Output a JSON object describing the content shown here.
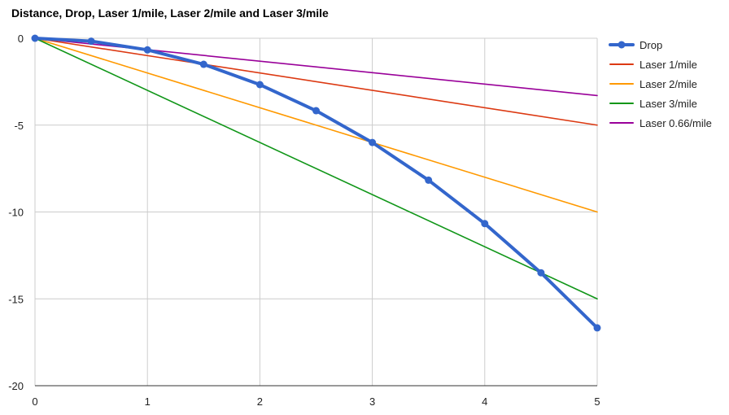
{
  "chart_data": {
    "type": "line",
    "title": "Distance, Drop, Laser 1/mile, Laser 2/mile and Laser 3/mile",
    "xlabel": "",
    "ylabel": "",
    "xlim": [
      0,
      5
    ],
    "ylim": [
      -20,
      0
    ],
    "x_ticks": [
      "0",
      "1",
      "2",
      "3",
      "4",
      "5"
    ],
    "y_ticks": [
      "0",
      "-5",
      "-10",
      "-15",
      "-20"
    ],
    "grid": true,
    "legend_position": "right",
    "series": [
      {
        "name": "Drop",
        "color": "#3366cc",
        "markers": true,
        "x": [
          0,
          0.5,
          1,
          1.5,
          2,
          2.5,
          3,
          3.5,
          4,
          4.5,
          5
        ],
        "y": [
          0,
          -0.17,
          -0.67,
          -1.5,
          -2.67,
          -4.17,
          -6.0,
          -8.17,
          -10.67,
          -13.5,
          -16.67
        ]
      },
      {
        "name": "Laser 1/mile",
        "color": "#dc3912",
        "markers": false,
        "x": [
          0,
          5
        ],
        "y": [
          0,
          -5
        ]
      },
      {
        "name": "Laser 2/mile",
        "color": "#ff9900",
        "markers": false,
        "x": [
          0,
          5
        ],
        "y": [
          0,
          -10
        ]
      },
      {
        "name": "Laser 3/mile",
        "color": "#109618",
        "markers": false,
        "x": [
          0,
          5
        ],
        "y": [
          0,
          -15
        ]
      },
      {
        "name": "Laser 0.66/mile",
        "color": "#990099",
        "markers": false,
        "x": [
          0,
          5
        ],
        "y": [
          0,
          -3.3
        ]
      }
    ]
  }
}
